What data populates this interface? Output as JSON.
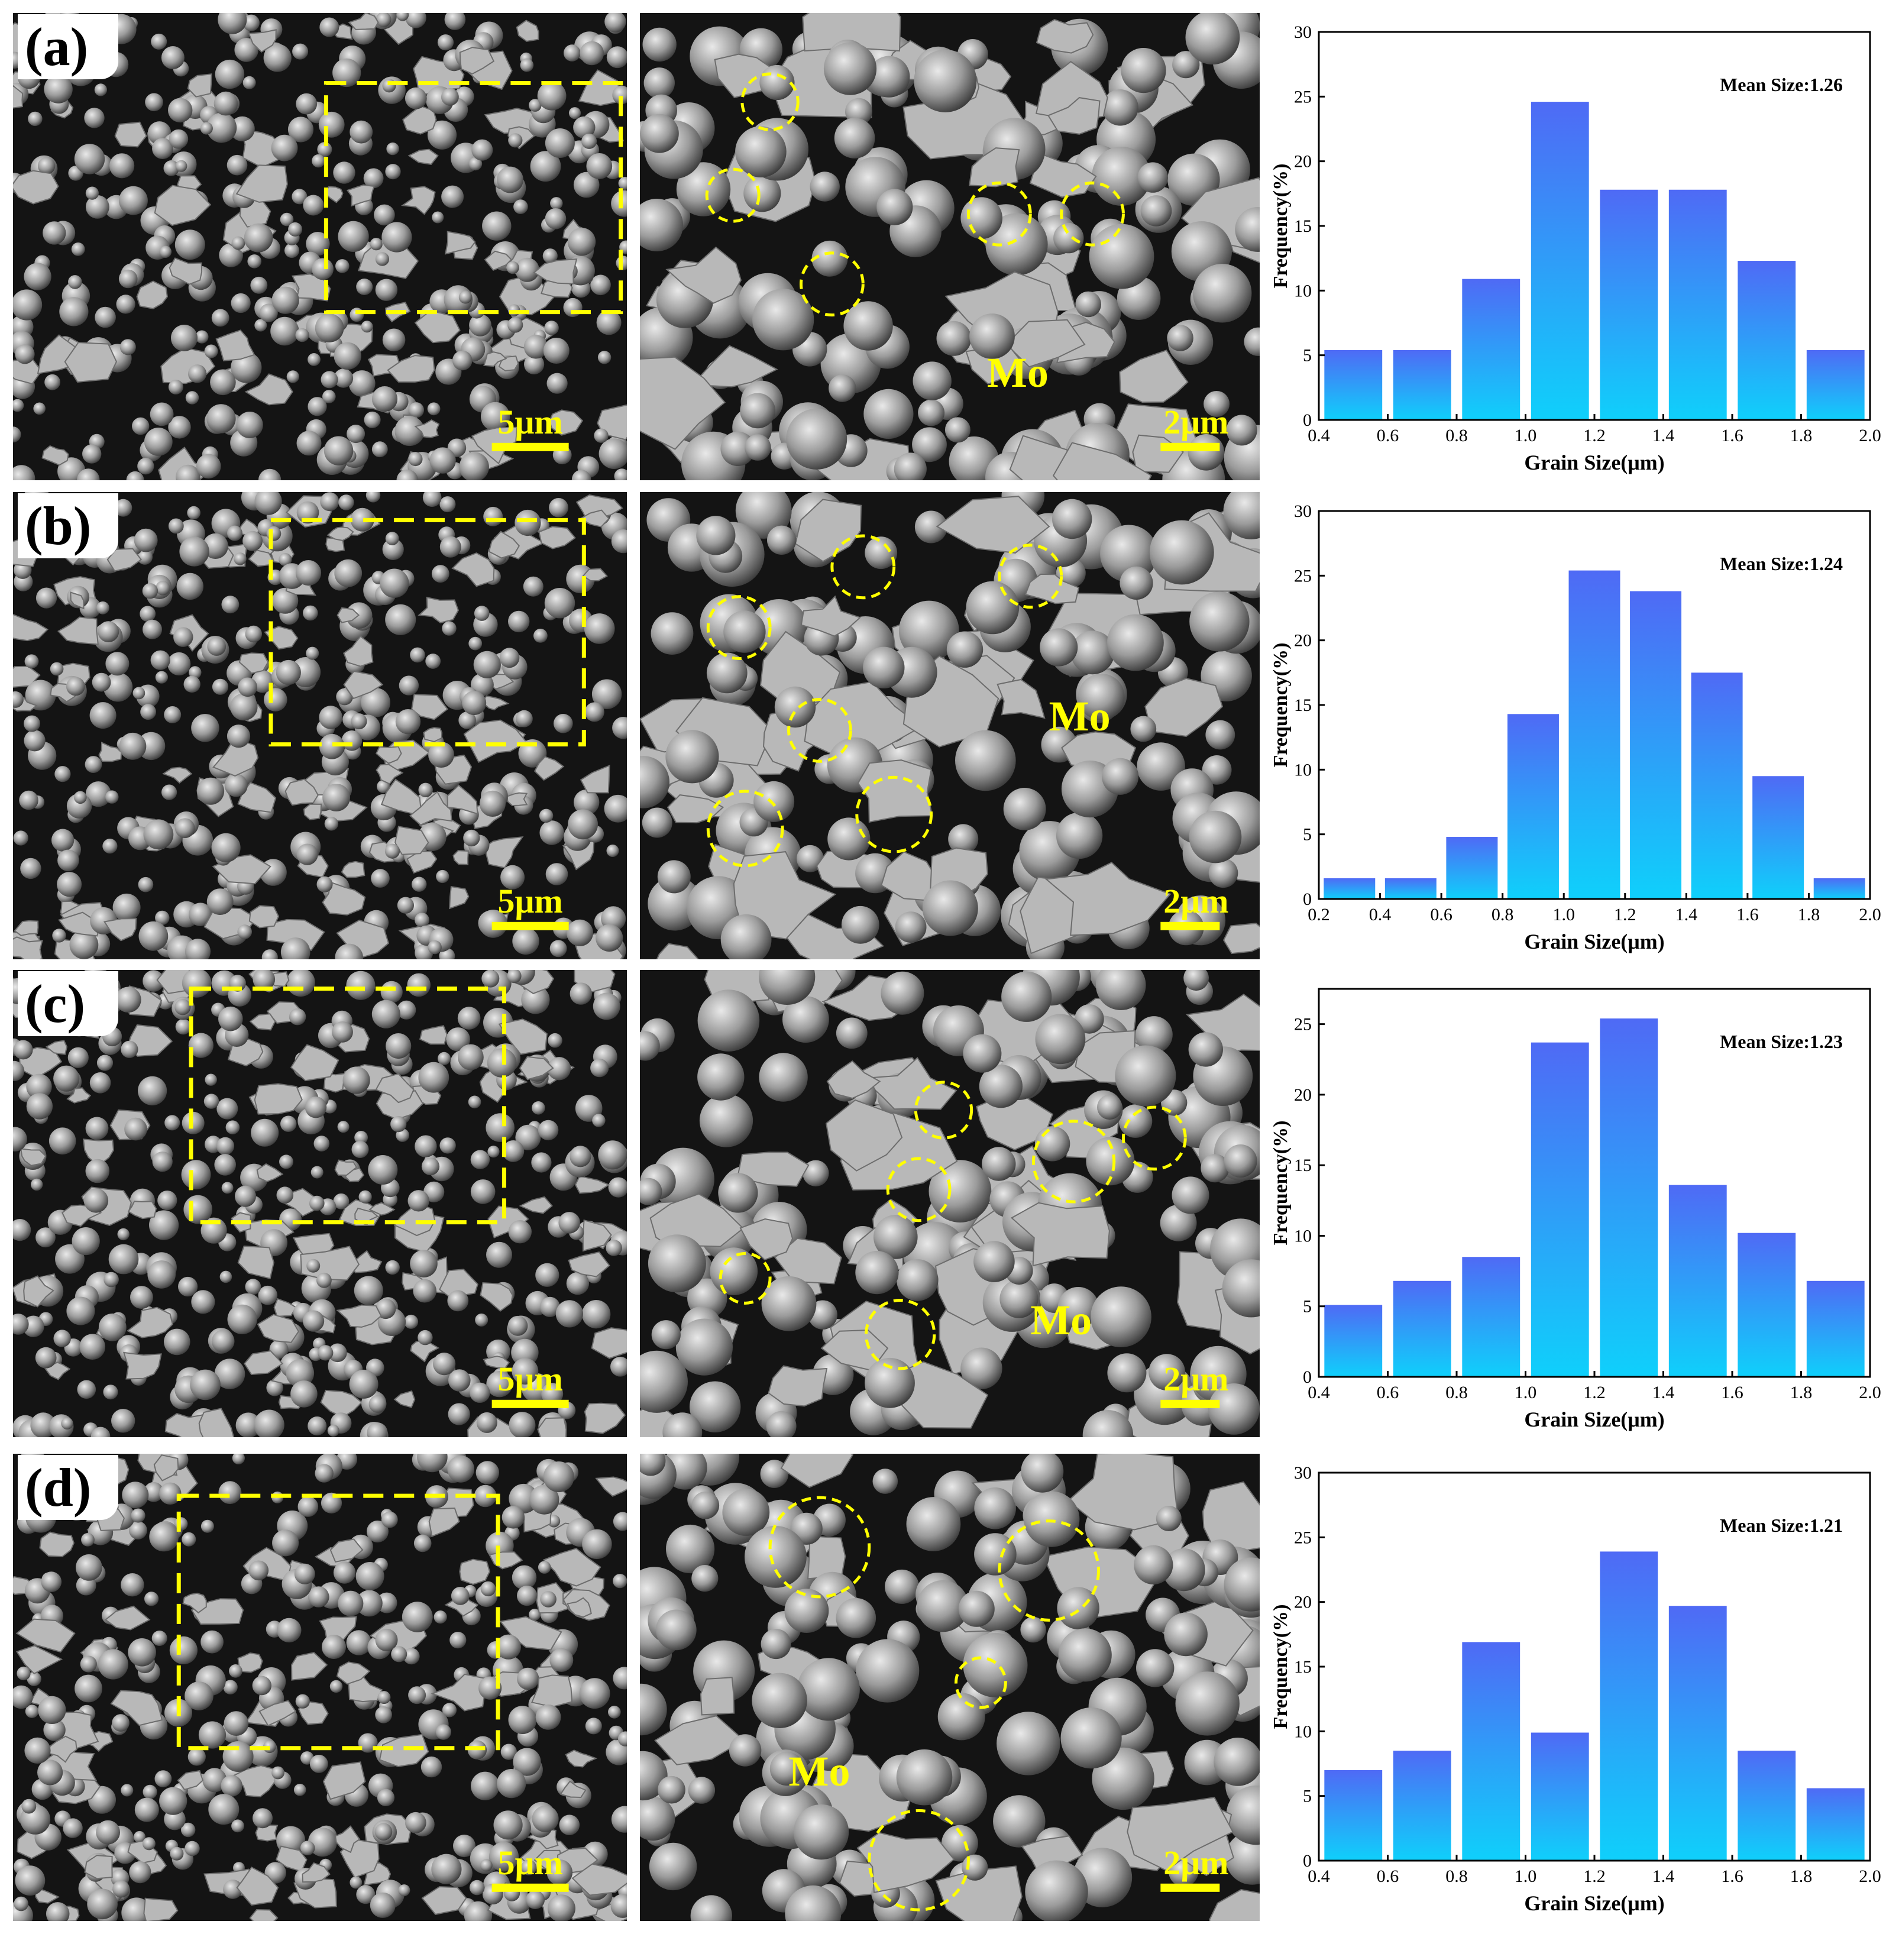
{
  "colors": {
    "bar_top": "#4f6af5",
    "bar_bottom": "#0fd0fb",
    "marker": "#ffff00"
  },
  "panels": [
    {
      "label": "(a)",
      "scale_low": "5μm",
      "scale_high": "2μm",
      "phase": "Mo"
    },
    {
      "label": "(b)",
      "scale_low": "5μm",
      "scale_high": "2μm",
      "phase": "Mo"
    },
    {
      "label": "(c)",
      "scale_low": "5μm",
      "scale_high": "2μm",
      "phase": "Mo"
    },
    {
      "label": "(d)",
      "scale_low": "5μm",
      "scale_high": "2μm",
      "phase": "Mo"
    }
  ],
  "chart_data": [
    {
      "type": "bar",
      "title": "",
      "annotation": "Mean Size:1.26",
      "xlabel": "Grain Size(μm)",
      "ylabel": "Frequency(%)",
      "xlim": [
        0.4,
        2.0
      ],
      "ylim": [
        0,
        30
      ],
      "xticks": [
        "0.4",
        "0.6",
        "0.8",
        "1.0",
        "1.2",
        "1.4",
        "1.6",
        "1.8",
        "2.0"
      ],
      "yticks": [
        "0",
        "5",
        "10",
        "15",
        "20",
        "25",
        "30"
      ],
      "bins": [
        [
          0.4,
          0.6
        ],
        [
          0.6,
          0.8
        ],
        [
          0.8,
          1.0
        ],
        [
          1.0,
          1.2
        ],
        [
          1.2,
          1.4
        ],
        [
          1.4,
          1.6
        ],
        [
          1.6,
          1.8
        ],
        [
          1.8,
          2.0
        ]
      ],
      "values": [
        5.4,
        5.4,
        10.9,
        24.6,
        17.8,
        17.8,
        12.3,
        5.4
      ]
    },
    {
      "type": "bar",
      "title": "",
      "annotation": "Mean Size:1.24",
      "xlabel": "Grain Size(μm)",
      "ylabel": "Frequency(%)",
      "xlim": [
        0.2,
        2.0
      ],
      "ylim": [
        0,
        30
      ],
      "xticks": [
        "0.2",
        "0.4",
        "0.6",
        "0.8",
        "1.0",
        "1.2",
        "1.4",
        "1.6",
        "1.8",
        "2.0"
      ],
      "yticks": [
        "0",
        "5",
        "10",
        "15",
        "20",
        "25",
        "30"
      ],
      "bins": [
        [
          0.2,
          0.4
        ],
        [
          0.4,
          0.6
        ],
        [
          0.6,
          0.8
        ],
        [
          0.8,
          1.0
        ],
        [
          1.0,
          1.2
        ],
        [
          1.2,
          1.4
        ],
        [
          1.4,
          1.6
        ],
        [
          1.6,
          1.8
        ],
        [
          1.8,
          2.0
        ]
      ],
      "values": [
        1.6,
        1.6,
        4.8,
        14.3,
        25.4,
        23.8,
        17.5,
        9.5,
        1.6
      ]
    },
    {
      "type": "bar",
      "title": "",
      "annotation": "Mean Size:1.23",
      "xlabel": "Grain Size(μm)",
      "ylabel": "Frequency(%)",
      "xlim": [
        0.4,
        2.0
      ],
      "ylim": [
        0,
        27.5
      ],
      "xticks": [
        "0.4",
        "0.6",
        "0.8",
        "1.0",
        "1.2",
        "1.4",
        "1.6",
        "1.8",
        "2.0"
      ],
      "yticks": [
        "0",
        "5",
        "10",
        "15",
        "20",
        "25"
      ],
      "bins": [
        [
          0.4,
          0.6
        ],
        [
          0.6,
          0.8
        ],
        [
          0.8,
          1.0
        ],
        [
          1.0,
          1.2
        ],
        [
          1.2,
          1.4
        ],
        [
          1.4,
          1.6
        ],
        [
          1.6,
          1.8
        ],
        [
          1.8,
          2.0
        ]
      ],
      "values": [
        5.1,
        6.8,
        8.5,
        23.7,
        25.4,
        13.6,
        10.2,
        6.8
      ]
    },
    {
      "type": "bar",
      "title": "",
      "annotation": "Mean Size:1.21",
      "xlabel": "Grain Size(μm)",
      "ylabel": "Frequency(%)",
      "xlim": [
        0.4,
        2.0
      ],
      "ylim": [
        0,
        30
      ],
      "xticks": [
        "0.4",
        "0.6",
        "0.8",
        "1.0",
        "1.2",
        "1.4",
        "1.6",
        "1.8",
        "2.0"
      ],
      "yticks": [
        "0",
        "5",
        "10",
        "15",
        "20",
        "25",
        "30"
      ],
      "bins": [
        [
          0.4,
          0.6
        ],
        [
          0.6,
          0.8
        ],
        [
          0.8,
          1.0
        ],
        [
          1.0,
          1.2
        ],
        [
          1.2,
          1.4
        ],
        [
          1.4,
          1.6
        ],
        [
          1.6,
          1.8
        ],
        [
          1.8,
          2.0
        ]
      ],
      "values": [
        7.0,
        8.5,
        16.9,
        9.9,
        23.9,
        19.7,
        8.5,
        5.6
      ]
    }
  ]
}
